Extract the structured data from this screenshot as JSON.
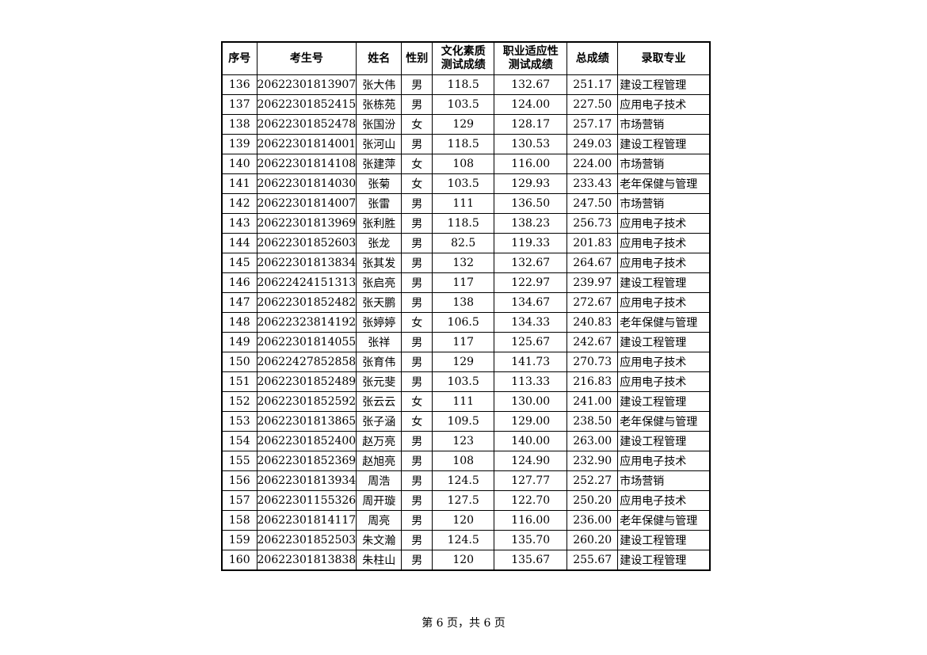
{
  "table": {
    "headers": [
      "序号",
      "考生号",
      "姓名",
      "性别",
      "文化素质\n测试成绩",
      "职业适应性\n测试成绩",
      "总成绩",
      "录取专业"
    ],
    "rows": [
      [
        "136",
        "20622301813907",
        "张大伟",
        "男",
        "118.5",
        "132.67",
        "251.17",
        "建设工程管理"
      ],
      [
        "137",
        "20622301852415",
        "张栋苑",
        "男",
        "103.5",
        "124.00",
        "227.50",
        "应用电子技术"
      ],
      [
        "138",
        "20622301852478",
        "张国汾",
        "女",
        "129",
        "128.17",
        "257.17",
        "市场营销"
      ],
      [
        "139",
        "20622301814001",
        "张河山",
        "男",
        "118.5",
        "130.53",
        "249.03",
        "建设工程管理"
      ],
      [
        "140",
        "20622301814108",
        "张建萍",
        "女",
        "108",
        "116.00",
        "224.00",
        "市场营销"
      ],
      [
        "141",
        "20622301814030",
        "张菊",
        "女",
        "103.5",
        "129.93",
        "233.43",
        "老年保健与管理"
      ],
      [
        "142",
        "20622301814007",
        "张雷",
        "男",
        "111",
        "136.50",
        "247.50",
        "市场营销"
      ],
      [
        "143",
        "20622301813969",
        "张利胜",
        "男",
        "118.5",
        "138.23",
        "256.73",
        "应用电子技术"
      ],
      [
        "144",
        "20622301852603",
        "张龙",
        "男",
        "82.5",
        "119.33",
        "201.83",
        "应用电子技术"
      ],
      [
        "145",
        "20622301813834",
        "张其发",
        "男",
        "132",
        "132.67",
        "264.67",
        "应用电子技术"
      ],
      [
        "146",
        "20622424151313",
        "张启亮",
        "男",
        "117",
        "122.97",
        "239.97",
        "建设工程管理"
      ],
      [
        "147",
        "20622301852482",
        "张天鹏",
        "男",
        "138",
        "134.67",
        "272.67",
        "应用电子技术"
      ],
      [
        "148",
        "20622323814192",
        "张婷婷",
        "女",
        "106.5",
        "134.33",
        "240.83",
        "老年保健与管理"
      ],
      [
        "149",
        "20622301814055",
        "张祥",
        "男",
        "117",
        "125.67",
        "242.67",
        "建设工程管理"
      ],
      [
        "150",
        "20622427852858",
        "张育伟",
        "男",
        "129",
        "141.73",
        "270.73",
        "应用电子技术"
      ],
      [
        "151",
        "20622301852489",
        "张元斐",
        "男",
        "103.5",
        "113.33",
        "216.83",
        "应用电子技术"
      ],
      [
        "152",
        "20622301852592",
        "张云云",
        "女",
        "111",
        "130.00",
        "241.00",
        "建设工程管理"
      ],
      [
        "153",
        "20622301813865",
        "张子涵",
        "女",
        "109.5",
        "129.00",
        "238.50",
        "老年保健与管理"
      ],
      [
        "154",
        "20622301852400",
        "赵万亮",
        "男",
        "123",
        "140.00",
        "263.00",
        "建设工程管理"
      ],
      [
        "155",
        "20622301852369",
        "赵旭亮",
        "男",
        "108",
        "124.90",
        "232.90",
        "应用电子技术"
      ],
      [
        "156",
        "20622301813934",
        "周浩",
        "男",
        "124.5",
        "127.77",
        "252.27",
        "市场营销"
      ],
      [
        "157",
        "20622301155326",
        "周开璇",
        "男",
        "127.5",
        "122.70",
        "250.20",
        "应用电子技术"
      ],
      [
        "158",
        "20622301814117",
        "周亮",
        "男",
        "120",
        "116.00",
        "236.00",
        "老年保健与管理"
      ],
      [
        "159",
        "20622301852503",
        "朱文瀚",
        "男",
        "124.5",
        "135.70",
        "260.20",
        "建设工程管理"
      ],
      [
        "160",
        "20622301813838",
        "朱柱山",
        "男",
        "120",
        "135.67",
        "255.67",
        "建设工程管理"
      ]
    ]
  },
  "footer": {
    "page_label": "第 6 页，共 6 页"
  }
}
